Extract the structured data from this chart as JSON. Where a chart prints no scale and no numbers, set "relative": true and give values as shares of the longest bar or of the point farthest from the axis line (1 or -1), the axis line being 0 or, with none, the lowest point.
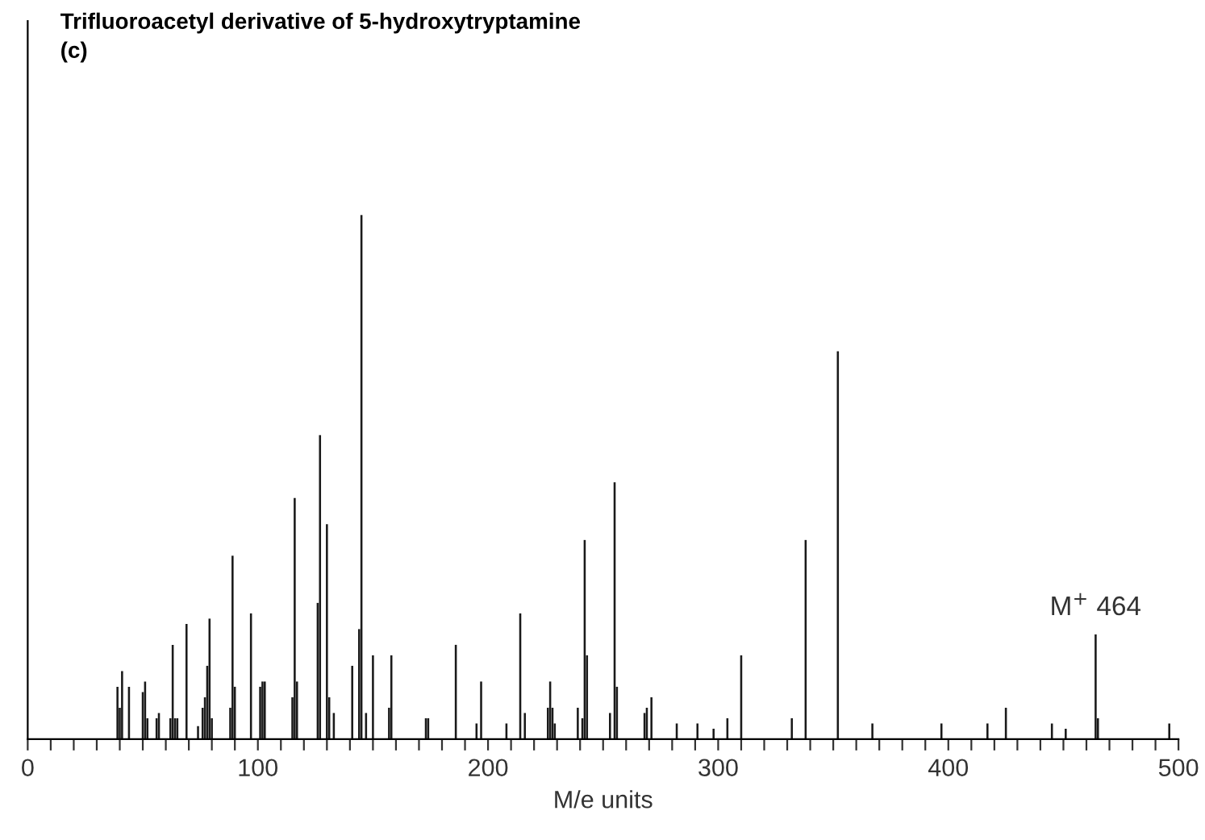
{
  "chart_data": {
    "type": "bar",
    "relative": true,
    "title": "Trifluoroacetyl derivative of 5-hydroxytryptamine\n(c)",
    "xlabel": "M/e units",
    "x": [
      39,
      40,
      41,
      44,
      50,
      51,
      52,
      56,
      57,
      62,
      63,
      64,
      65,
      69,
      74,
      76,
      77,
      78,
      79,
      80,
      88,
      89,
      90,
      97,
      101,
      102,
      103,
      115,
      116,
      117,
      126,
      127,
      130,
      131,
      133,
      141,
      144,
      145,
      147,
      150,
      157,
      158,
      173,
      174,
      186,
      195,
      197,
      208,
      214,
      216,
      226,
      227,
      228,
      229,
      239,
      241,
      242,
      243,
      253,
      255,
      256,
      268,
      269,
      271,
      282,
      291,
      298,
      304,
      310,
      332,
      338,
      352,
      367,
      397,
      417,
      425,
      445,
      451,
      464,
      465,
      496
    ],
    "values": [
      0.1,
      0.06,
      0.13,
      0.1,
      0.09,
      0.11,
      0.04,
      0.04,
      0.05,
      0.04,
      0.18,
      0.04,
      0.04,
      0.22,
      0.025,
      0.06,
      0.08,
      0.14,
      0.23,
      0.04,
      0.06,
      0.35,
      0.1,
      0.24,
      0.1,
      0.11,
      0.11,
      0.08,
      0.46,
      0.11,
      0.26,
      0.58,
      0.41,
      0.08,
      0.05,
      0.14,
      0.21,
      1.0,
      0.05,
      0.16,
      0.06,
      0.16,
      0.04,
      0.04,
      0.18,
      0.03,
      0.11,
      0.03,
      0.24,
      0.05,
      0.06,
      0.11,
      0.06,
      0.03,
      0.06,
      0.04,
      0.38,
      0.16,
      0.05,
      0.49,
      0.1,
      0.05,
      0.06,
      0.08,
      0.03,
      0.03,
      0.02,
      0.04,
      0.16,
      0.04,
      0.38,
      0.74,
      0.03,
      0.03,
      0.03,
      0.06,
      0.03,
      0.02,
      0.2,
      0.04,
      0.03
    ],
    "color": "#1a1a1a",
    "xlim": [
      0,
      500
    ],
    "xticks": [
      0,
      {
        "value": 10,
        "label": null
      },
      {
        "value": 20,
        "label": null
      },
      {
        "value": 30,
        "label": null
      },
      {
        "value": 40,
        "label": null
      },
      {
        "value": 50,
        "label": null
      },
      {
        "value": 60,
        "label": null
      },
      {
        "value": 70,
        "label": null
      },
      {
        "value": 80,
        "label": null
      },
      {
        "value": 90,
        "label": null
      },
      100,
      {
        "value": 110,
        "label": null
      },
      {
        "value": 120,
        "label": null
      },
      {
        "value": 130,
        "label": null
      },
      {
        "value": 140,
        "label": null
      },
      {
        "value": 150,
        "label": null
      },
      {
        "value": 160,
        "label": null
      },
      {
        "value": 170,
        "label": null
      },
      {
        "value": 180,
        "label": null
      },
      {
        "value": 190,
        "label": null
      },
      200,
      {
        "value": 210,
        "label": null
      },
      {
        "value": 220,
        "label": null
      },
      {
        "value": 230,
        "label": null
      },
      {
        "value": 240,
        "label": null
      },
      {
        "value": 250,
        "label": null
      },
      {
        "value": 260,
        "label": null
      },
      {
        "value": 270,
        "label": null
      },
      {
        "value": 280,
        "label": null
      },
      {
        "value": 290,
        "label": null
      },
      300,
      {
        "value": 310,
        "label": null
      },
      {
        "value": 320,
        "label": null
      },
      {
        "value": 330,
        "label": null
      },
      {
        "value": 340,
        "label": null
      },
      {
        "value": 350,
        "label": null
      },
      {
        "value": 360,
        "label": null
      },
      {
        "value": 370,
        "label": null
      },
      {
        "value": 380,
        "label": null
      },
      {
        "value": 390,
        "label": null
      },
      400,
      {
        "value": 410,
        "label": null
      },
      {
        "value": 420,
        "label": null
      },
      {
        "value": 430,
        "label": null
      },
      {
        "value": 440,
        "label": null
      },
      {
        "value": 450,
        "label": null
      },
      {
        "value": 460,
        "label": null
      },
      {
        "value": 470,
        "label": null
      },
      {
        "value": 480,
        "label": null
      },
      {
        "value": 490,
        "label": null
      },
      500
    ],
    "annotations": [
      {
        "text": "M$^{+}$ 464",
        "x": 464,
        "y": 0.2
      }
    ],
    "grid": false,
    "legend": false
  }
}
